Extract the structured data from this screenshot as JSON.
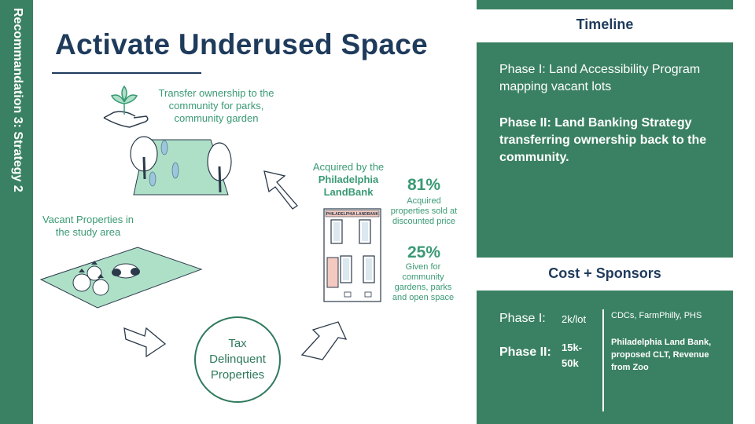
{
  "sidebar": {
    "label": "Recommandation 3: Strategy 2"
  },
  "title": "Activate Underused Space",
  "cycle": {
    "transfer_caption": "Transfer ownership to the community  for parks, community  garden",
    "acquired_prefix": "Acquired by the",
    "acquired_bold": "Philadelphia LandBank",
    "vacant_caption": "Vacant Properties in the study area",
    "tax_label": "Tax Delinquent Properties",
    "building_sign": "PHILADELPHIA LANDBANK"
  },
  "stats": [
    {
      "value": "81%",
      "caption": "Acquired properties sold at discounted price"
    },
    {
      "value": "25%",
      "caption": "Given for community gardens, parks and open space"
    }
  ],
  "timeline": {
    "heading": "Timeline",
    "phase1": "Phase I:  Land Accessibility Program mapping vacant lots",
    "phase2": "Phase II: Land Banking Strategy transferring ownership back to the community."
  },
  "cost": {
    "heading": "Cost + Sponsors",
    "phase1_label": "Phase I:",
    "phase1_amount": "2k/lot",
    "phase1_sponsors": "CDCs, FarmPhilly, PHS",
    "phase2_label": "Phase II:",
    "phase2_amount": "15k-50k",
    "phase2_sponsors": "Philadelphia Land Bank, proposed CLT, Revenue from  Zoo"
  },
  "colors": {
    "primary_green": "#3a8163",
    "text_green": "#3a9a74",
    "navy": "#1f3b5c",
    "mint": "#aee0c8"
  }
}
